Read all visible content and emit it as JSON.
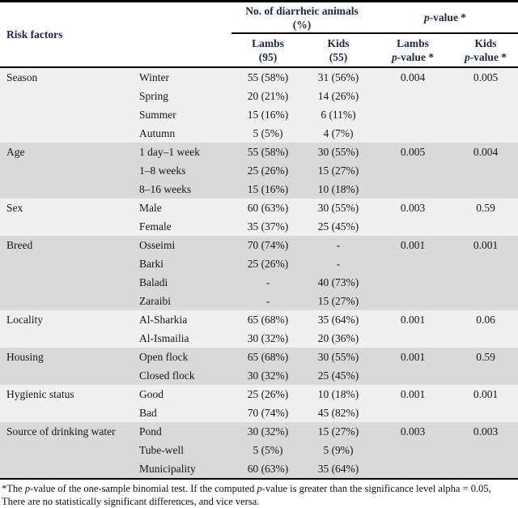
{
  "table": {
    "header": {
      "risk_factors": "Risk factors",
      "group_animals": "No. of diarrheic animals",
      "group_animals_pct": "(%)",
      "p_italic": "p",
      "p_rest": "-value *",
      "col_lambs": "Lambs",
      "col_lambs_n": "(95)",
      "col_kids": "Kids",
      "col_kids_n": "(55)",
      "col_lambs_p": "Lambs",
      "col_kids_p": "Kids"
    },
    "sections": [
      {
        "factor": "Season",
        "shade": "light",
        "rows": [
          {
            "category": "Winter",
            "lambs": "55 (58%)",
            "kids": "31 (56%)",
            "lambs_p": "0.004",
            "kids_p": "0.005"
          },
          {
            "category": "Spring",
            "lambs": "20 (21%)",
            "kids": "14 (26%)",
            "lambs_p": "",
            "kids_p": ""
          },
          {
            "category": "Summer",
            "lambs": "15 (16%)",
            "kids": "6 (11%)",
            "lambs_p": "",
            "kids_p": ""
          },
          {
            "category": "Autumn",
            "lambs": "5 (5%)",
            "kids": "4 (7%)",
            "lambs_p": "",
            "kids_p": ""
          }
        ]
      },
      {
        "factor": "Age",
        "shade": "dark",
        "rows": [
          {
            "category": "1 day–1 week",
            "lambs": "55 (58%)",
            "kids": "30 (55%)",
            "lambs_p": "0.005",
            "kids_p": "0.004"
          },
          {
            "category": "1–8 weeks",
            "lambs": "25 (26%)",
            "kids": "15 (27%)",
            "lambs_p": "",
            "kids_p": ""
          },
          {
            "category": "8–16 weeks",
            "lambs": "15 (16%)",
            "kids": "10 (18%)",
            "lambs_p": "",
            "kids_p": ""
          }
        ]
      },
      {
        "factor": "Sex",
        "shade": "light",
        "rows": [
          {
            "category": "Male",
            "lambs": "60 (63%)",
            "kids": "30 (55%)",
            "lambs_p": "0.003",
            "kids_p": "0.59"
          },
          {
            "category": "Female",
            "lambs": "35 (37%)",
            "kids": "25 (45%)",
            "lambs_p": "",
            "kids_p": ""
          }
        ]
      },
      {
        "factor": "Breed",
        "shade": "dark",
        "rows": [
          {
            "category": "Osseimi",
            "lambs": "70 (74%)",
            "kids": "-",
            "lambs_p": "0.001",
            "kids_p": "0.001"
          },
          {
            "category": "Barki",
            "lambs": "25 (26%)",
            "kids": "-",
            "lambs_p": "",
            "kids_p": ""
          },
          {
            "category": "Baladi",
            "lambs": "-",
            "kids": "40 (73%)",
            "lambs_p": "",
            "kids_p": ""
          },
          {
            "category": "Zaraibi",
            "lambs": "-",
            "kids": "15 (27%)",
            "lambs_p": "",
            "kids_p": ""
          }
        ]
      },
      {
        "factor": "Locality",
        "shade": "light",
        "rows": [
          {
            "category": "Al-Sharkia",
            "lambs": "65 (68%)",
            "kids": "35 (64%)",
            "lambs_p": "0.001",
            "kids_p": "0.06"
          },
          {
            "category": "Al-Ismailia",
            "lambs": "30 (32%)",
            "kids": "20 (36%)",
            "lambs_p": "",
            "kids_p": ""
          }
        ]
      },
      {
        "factor": "Housing",
        "shade": "dark",
        "rows": [
          {
            "category": "Open flock",
            "lambs": "65 (68%)",
            "kids": "30 (55%)",
            "lambs_p": "0.001",
            "kids_p": "0.59"
          },
          {
            "category": "Closed flock",
            "lambs": "30 (32%)",
            "kids": "25 (45%)",
            "lambs_p": "",
            "kids_p": ""
          }
        ]
      },
      {
        "factor": "Hygienic status",
        "shade": "light",
        "rows": [
          {
            "category": "Good",
            "lambs": "25 (26%)",
            "kids": "10 (18%)",
            "lambs_p": "0.001",
            "kids_p": "0.001"
          },
          {
            "category": "Bad",
            "lambs": "70 (74%)",
            "kids": "45 (82%)",
            "lambs_p": "",
            "kids_p": ""
          }
        ]
      },
      {
        "factor": "Source of drinking water",
        "shade": "dark",
        "rows": [
          {
            "category": "Pond",
            "lambs": "30 (32%)",
            "kids": "15 (27%)",
            "lambs_p": "0.003",
            "kids_p": "0.003"
          },
          {
            "category": "Tube-well",
            "lambs": "5 (5%)",
            "kids": "5 (9%)",
            "lambs_p": "",
            "kids_p": ""
          },
          {
            "category": "Municipality",
            "lambs": "60 (63%)",
            "kids": "35 (64%)",
            "lambs_p": "",
            "kids_p": ""
          }
        ]
      }
    ]
  },
  "footnote": {
    "seg1": "*The ",
    "seg2": "p",
    "seg3": "-value of the one-sample binomial test. If the computed ",
    "seg4": "p",
    "seg5": "-value is greater than the significance level alpha = 0.05, There are no statistically significant differences, and vice versa."
  },
  "colors": {
    "section_light": "#f0f0f1",
    "section_dark": "#d9d9d9",
    "header_text": "#21294a",
    "border": "#000000"
  }
}
